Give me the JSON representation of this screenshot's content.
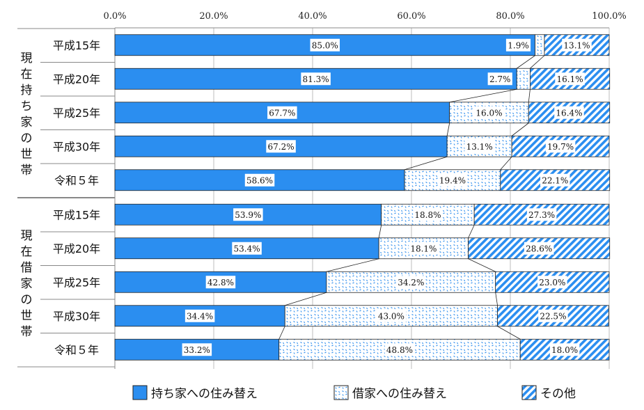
{
  "chart_data": {
    "type": "bar",
    "orientation": "horizontal",
    "stacked": true,
    "xlim": [
      0,
      100
    ],
    "x_ticks": [
      "0.0%",
      "20.0%",
      "40.0%",
      "60.0%",
      "80.0%",
      "100.0%"
    ],
    "groups": [
      {
        "name": "現在持ち家の世帯",
        "categories": [
          "平成15年",
          "平成20年",
          "平成25年",
          "平成30年",
          "令和５年"
        ],
        "values": [
          [
            85.0,
            1.9,
            13.1
          ],
          [
            81.3,
            2.7,
            16.1
          ],
          [
            67.7,
            16.0,
            16.4
          ],
          [
            67.2,
            13.1,
            19.7
          ],
          [
            58.6,
            19.4,
            22.1
          ]
        ],
        "labels": [
          [
            "85.0%",
            "1.9%",
            "13.1%"
          ],
          [
            "81.3%",
            "2.7%",
            "16.1%"
          ],
          [
            "67.7%",
            "16.0%",
            "16.4%"
          ],
          [
            "67.2%",
            "13.1%",
            "19.7%"
          ],
          [
            "58.6%",
            "19.4%",
            "22.1%"
          ]
        ]
      },
      {
        "name": "現在借家の世帯",
        "categories": [
          "平成15年",
          "平成20年",
          "平成25年",
          "平成30年",
          "令和５年"
        ],
        "values": [
          [
            53.9,
            18.8,
            27.3
          ],
          [
            53.4,
            18.1,
            28.6
          ],
          [
            42.8,
            34.2,
            23.0
          ],
          [
            34.4,
            43.0,
            22.5
          ],
          [
            33.2,
            48.8,
            18.0
          ]
        ],
        "labels": [
          [
            "53.9%",
            "18.8%",
            "27.3%"
          ],
          [
            "53.4%",
            "18.1%",
            "28.6%"
          ],
          [
            "42.8%",
            "34.2%",
            "23.0%"
          ],
          [
            "34.4%",
            "43.0%",
            "22.5%"
          ],
          [
            "33.2%",
            "48.8%",
            "18.0%"
          ]
        ]
      }
    ],
    "series": [
      {
        "name": "持ち家への住み替え",
        "color": "#2b8ef0",
        "pattern": "solid"
      },
      {
        "name": "借家への住み替え",
        "color": "#2b8ef0",
        "pattern": "dots"
      },
      {
        "name": "その他",
        "color": "#2b8ef0",
        "pattern": "diagonal"
      }
    ],
    "legend_position": "bottom",
    "series_lines": true
  }
}
